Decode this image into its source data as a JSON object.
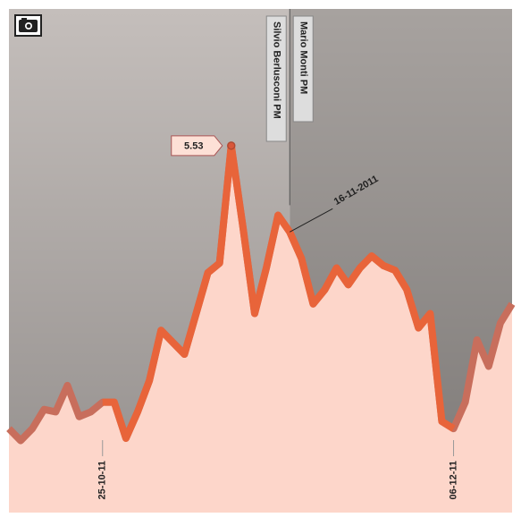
{
  "chart_data": {
    "type": "area",
    "categories": [
      null,
      null,
      null,
      null,
      null,
      null,
      null,
      null,
      "25-10-11",
      null,
      null,
      null,
      null,
      null,
      null,
      null,
      null,
      null,
      null,
      null,
      null,
      null,
      null,
      null,
      null,
      null,
      null,
      null,
      null,
      null,
      null,
      null,
      null,
      null,
      null,
      null,
      null,
      null,
      "06-12-11",
      null,
      null,
      null,
      null,
      null
    ],
    "series": [
      {
        "color": "#e8643a",
        "dim_color": "#c86e5c",
        "fill": "#fdd6ca",
        "values": [
          4.35,
          4.3,
          4.35,
          4.43,
          4.42,
          4.53,
          4.4,
          4.42,
          4.46,
          4.46,
          4.31,
          4.42,
          4.55,
          4.76,
          4.71,
          4.66,
          4.83,
          5.0,
          5.04,
          5.53,
          5.19,
          4.83,
          5.02,
          5.24,
          5.17,
          5.06,
          4.87,
          4.93,
          5.02,
          4.95,
          5.02,
          5.07,
          5.03,
          5.01,
          4.93,
          4.77,
          4.83,
          4.38,
          4.35,
          4.46,
          4.72,
          4.61,
          4.79,
          4.87
        ]
      }
    ],
    "ylim": [
      4,
      6.1
    ],
    "peak_label_index": 19,
    "annotations": [
      {
        "x": 24,
        "text": "16-11-2011"
      }
    ],
    "events": [
      {
        "x": 24,
        "before": "Silvio Berlusconi PM",
        "after": "Mario Monti PM"
      }
    ],
    "background": {
      "before": "#c4bebb",
      "after": "#a7a29f"
    }
  }
}
